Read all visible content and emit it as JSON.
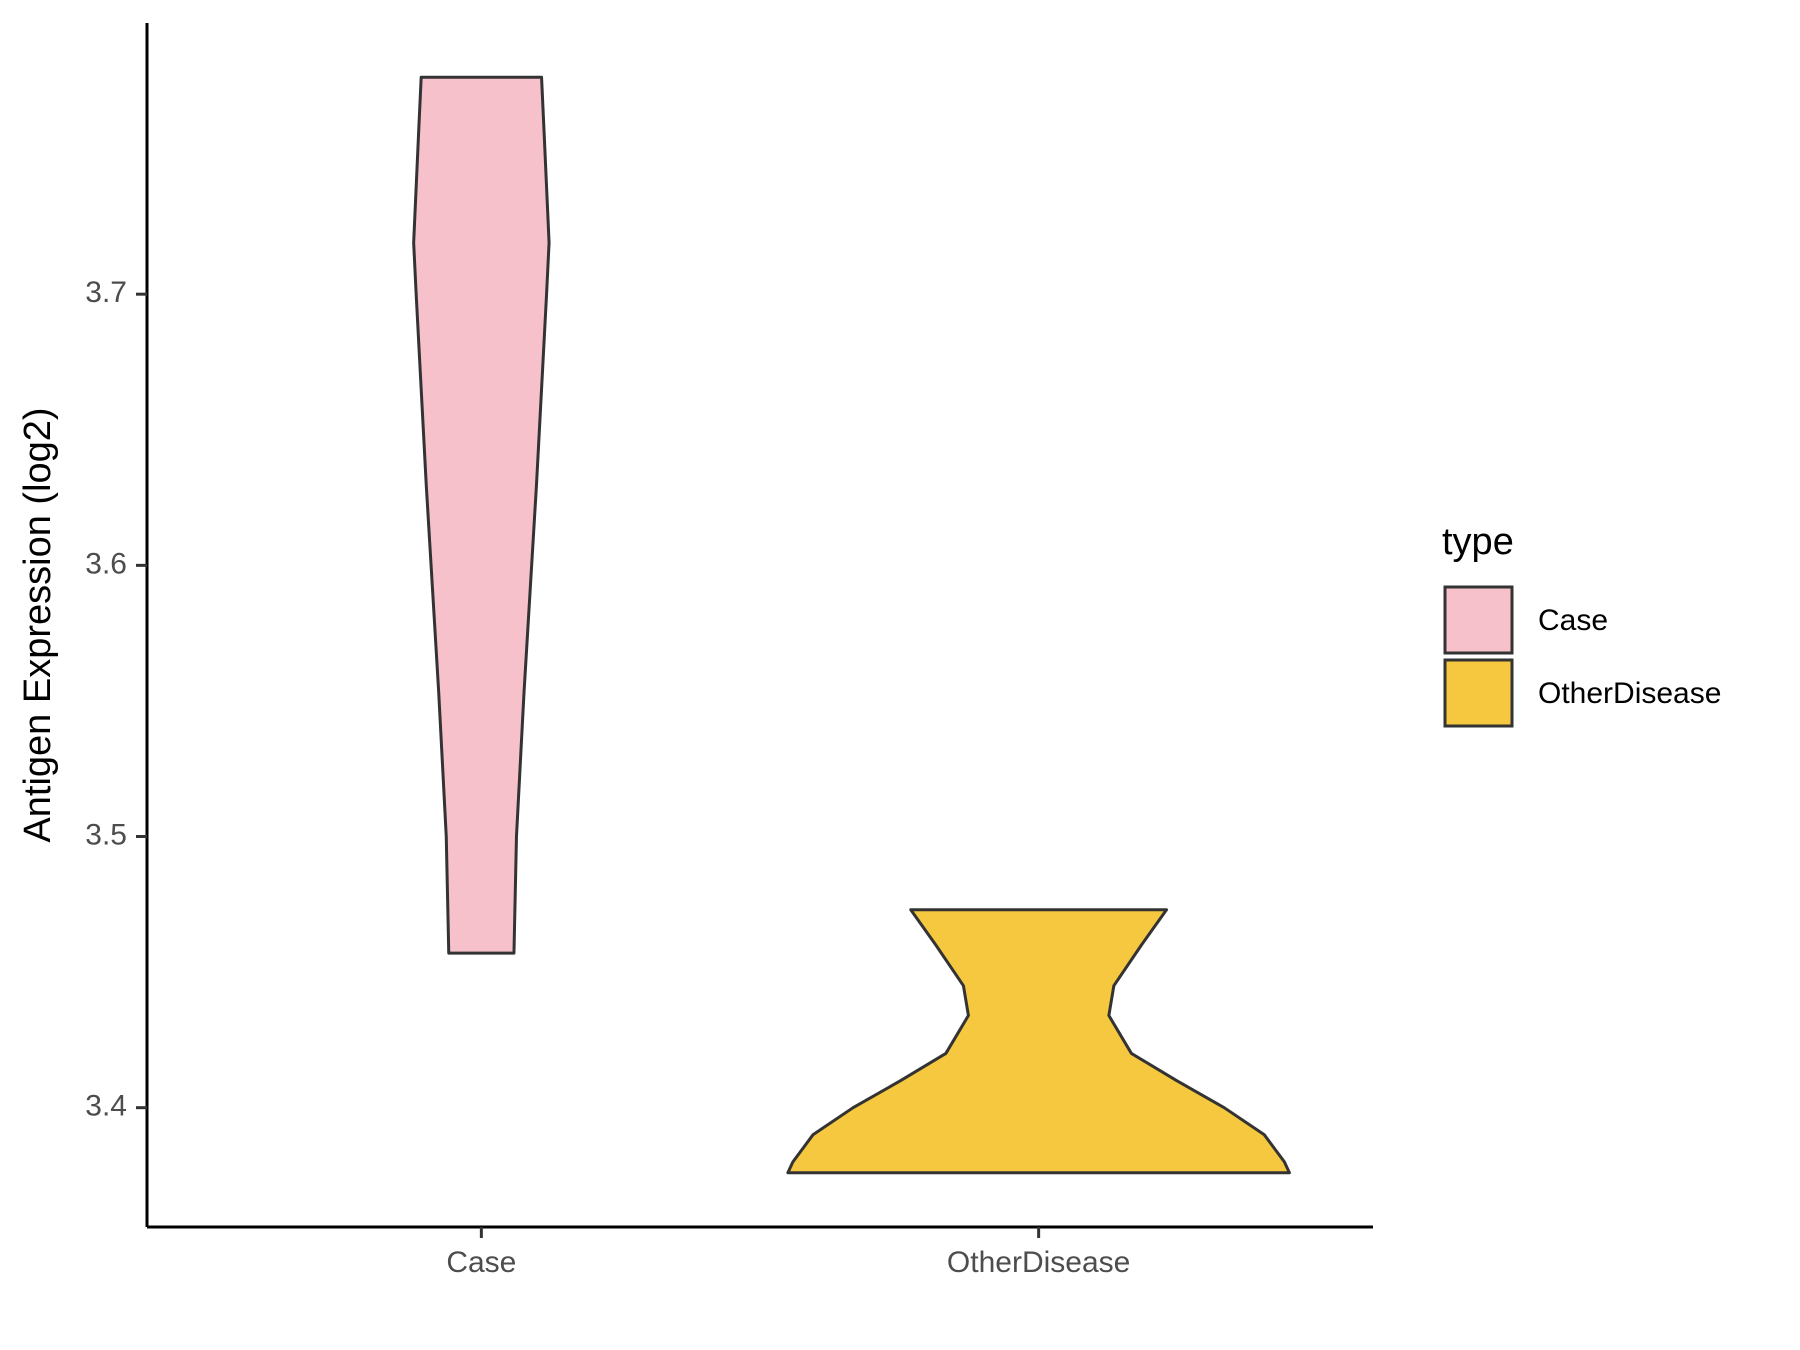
{
  "chart_data": {
    "type": "violin",
    "y_label": "Antigen Expression (log2)",
    "categories": [
      "Case",
      "OtherDisease"
    ],
    "legend_title": "type",
    "legend_position": "right",
    "ylim": [
      3.356,
      3.8
    ],
    "yticks": [
      3.4,
      3.5,
      3.6,
      3.7
    ],
    "grid": false,
    "series": [
      {
        "name": "Case",
        "color": "#f7c1cc",
        "y": [
          3.457,
          3.5,
          3.553,
          3.63,
          3.7,
          3.719,
          3.76,
          3.78
        ],
        "density": [
          0.13,
          0.14,
          0.17,
          0.22,
          0.26,
          0.27,
          0.25,
          0.24
        ]
      },
      {
        "name": "OtherDisease",
        "color": "#f6c83f",
        "y": [
          3.376,
          3.38,
          3.39,
          3.4,
          3.41,
          3.42,
          3.434,
          3.445,
          3.46,
          3.473
        ],
        "density": [
          1.0,
          0.98,
          0.9,
          0.74,
          0.55,
          0.37,
          0.28,
          0.3,
          0.41,
          0.51
        ]
      }
    ]
  }
}
